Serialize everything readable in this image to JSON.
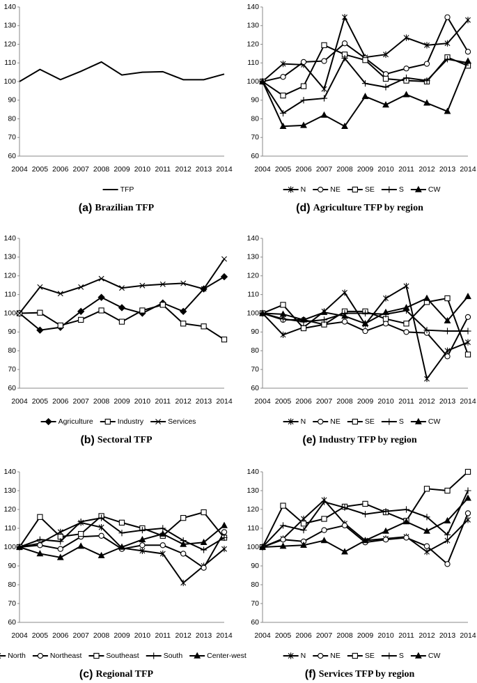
{
  "chart_data": [
    {
      "type": "line",
      "caption_label": "(a)",
      "caption": "Brazilian TFP",
      "categories": [
        "2004",
        "2005",
        "2006",
        "2007",
        "2008",
        "2009",
        "2010",
        "2011",
        "2012",
        "2013",
        "2014"
      ],
      "ylim": [
        60,
        140
      ],
      "yticks": [
        60,
        70,
        80,
        90,
        100,
        110,
        120,
        130,
        140
      ],
      "series": [
        {
          "name": "TFP",
          "color": "#000000",
          "marker": "none",
          "values": [
            100,
            106.5,
            101,
            105.5,
            110.5,
            103.5,
            105,
            105.3,
            101,
            101,
            104
          ]
        }
      ]
    },
    {
      "type": "line",
      "caption_label": "(b)",
      "caption": "Sectoral TFP",
      "categories": [
        "2004",
        "2005",
        "2006",
        "2007",
        "2008",
        "2009",
        "2010",
        "2011",
        "2012",
        "2013",
        "2014"
      ],
      "ylim": [
        60,
        140
      ],
      "yticks": [
        60,
        70,
        80,
        90,
        100,
        110,
        120,
        130,
        140
      ],
      "series": [
        {
          "name": "Agriculture",
          "color": "#000000",
          "marker": "diamond",
          "values": [
            100,
            91,
            92.5,
            101,
            108.5,
            103,
            100,
            105.5,
            101,
            113,
            119.5
          ]
        },
        {
          "name": "Industry",
          "color": "#000000",
          "marker": "square",
          "values": [
            100,
            100.3,
            93.5,
            96.5,
            101.5,
            95.5,
            101.5,
            104.5,
            94.5,
            93,
            86
          ]
        },
        {
          "name": "Services",
          "color": "#000000",
          "marker": "cross",
          "values": [
            100,
            114,
            110.5,
            114,
            118.5,
            113.5,
            114.8,
            115.5,
            116,
            113,
            129
          ]
        }
      ]
    },
    {
      "type": "line",
      "caption_label": "(c)",
      "caption": "Regional TFP",
      "categories": [
        "2004",
        "2005",
        "2006",
        "2007",
        "2008",
        "2009",
        "2010",
        "2011",
        "2012",
        "2013",
        "2014"
      ],
      "ylim": [
        60,
        140
      ],
      "yticks": [
        60,
        70,
        80,
        90,
        100,
        110,
        120,
        130,
        140
      ],
      "series": [
        {
          "name": "North",
          "color": "#000000",
          "marker": "asterisk",
          "values": [
            100,
            102,
            108,
            113,
            110.5,
            99.5,
            98,
            96.5,
            81,
            90,
            99
          ]
        },
        {
          "name": "Northeast",
          "color": "#000000",
          "marker": "circle",
          "values": [
            100,
            101,
            99,
            105.5,
            106,
            99,
            101,
            101,
            96.5,
            89,
            108
          ]
        },
        {
          "name": "Southeast",
          "color": "#000000",
          "marker": "square",
          "values": [
            100,
            116,
            105.5,
            107,
            116.5,
            113,
            110,
            106,
            115.5,
            118.5,
            105
          ]
        },
        {
          "name": "South",
          "color": "#000000",
          "marker": "plus",
          "values": [
            100,
            104,
            103,
            113.5,
            115.5,
            107.5,
            109,
            110,
            103.5,
            98.5,
            105
          ]
        },
        {
          "name": "Center-west",
          "color": "#000000",
          "marker": "triangle",
          "values": [
            100,
            96.5,
            94.5,
            100.5,
            95.5,
            100,
            104,
            107,
            101.5,
            102.5,
            111.5
          ]
        }
      ]
    },
    {
      "type": "line",
      "caption_label": "(d)",
      "caption": "Agriculture TFP by region",
      "categories": [
        "2004",
        "2005",
        "2006",
        "2007",
        "2008",
        "2009",
        "2010",
        "2011",
        "2012",
        "2013",
        "2014"
      ],
      "ylim": [
        60,
        140
      ],
      "yticks": [
        60,
        70,
        80,
        90,
        100,
        110,
        120,
        130,
        140
      ],
      "series": [
        {
          "name": "N",
          "color": "#000000",
          "marker": "asterisk",
          "values": [
            100,
            109.5,
            109,
            96,
            134.5,
            113,
            114.5,
            123.5,
            119.5,
            120.5,
            133
          ]
        },
        {
          "name": "NE",
          "color": "#000000",
          "marker": "circle",
          "values": [
            100,
            102.5,
            110.5,
            111,
            120.5,
            112.5,
            104,
            107,
            109.5,
            134.5,
            116
          ]
        },
        {
          "name": "SE",
          "color": "#000000",
          "marker": "square",
          "values": [
            100,
            92.5,
            97.5,
            119.5,
            114.5,
            111.5,
            101.5,
            100.5,
            100,
            113,
            108.5
          ]
        },
        {
          "name": "S",
          "color": "#000000",
          "marker": "plus",
          "values": [
            100,
            83,
            90,
            91,
            112.5,
            99,
            97,
            102,
            100.5,
            112,
            110
          ]
        },
        {
          "name": "CW",
          "color": "#000000",
          "marker": "triangle",
          "values": [
            100,
            76,
            76.5,
            82,
            76,
            92,
            87.5,
            93,
            88.5,
            84,
            111
          ]
        }
      ]
    },
    {
      "type": "line",
      "caption_label": "(e)",
      "caption": "Industry TFP by region",
      "categories": [
        "2004",
        "2005",
        "2006",
        "2007",
        "2008",
        "2009",
        "2010",
        "2011",
        "2012",
        "2013",
        "2014"
      ],
      "ylim": [
        60,
        140
      ],
      "yticks": [
        60,
        70,
        80,
        90,
        100,
        110,
        120,
        130,
        140
      ],
      "series": [
        {
          "name": "N",
          "color": "#000000",
          "marker": "asterisk",
          "values": [
            100,
            88.5,
            92.5,
            101,
            111,
            94,
            108,
            114.5,
            65,
            80,
            84.5
          ]
        },
        {
          "name": "NE",
          "color": "#000000",
          "marker": "circle",
          "values": [
            100,
            96.5,
            96.5,
            94,
            95.5,
            90.5,
            94.5,
            90,
            89.5,
            77,
            98
          ]
        },
        {
          "name": "SE",
          "color": "#000000",
          "marker": "square",
          "values": [
            100,
            104.5,
            92,
            94,
            101,
            101,
            97,
            94.5,
            106,
            108,
            78
          ]
        },
        {
          "name": "S",
          "color": "#000000",
          "marker": "plus",
          "values": [
            100,
            97,
            95.5,
            96.5,
            100,
            100,
            99.5,
            101.5,
            91,
            90.5,
            90.5
          ]
        },
        {
          "name": "CW",
          "color": "#000000",
          "marker": "triangle",
          "values": [
            100,
            99.5,
            96.5,
            100.5,
            98.5,
            94.5,
            100.5,
            103,
            108,
            96,
            109
          ]
        }
      ]
    },
    {
      "type": "line",
      "caption_label": "(f)",
      "caption": "Services TFP by region",
      "categories": [
        "2004",
        "2005",
        "2006",
        "2007",
        "2008",
        "2009",
        "2010",
        "2011",
        "2012",
        "2013",
        "2014"
      ],
      "ylim": [
        60,
        140
      ],
      "yticks": [
        60,
        70,
        80,
        90,
        100,
        110,
        120,
        130,
        140
      ],
      "series": [
        {
          "name": "N",
          "color": "#000000",
          "marker": "asterisk",
          "values": [
            100,
            104.5,
            115,
            125,
            112.5,
            103.5,
            104.5,
            105.5,
            97.5,
            103.5,
            114.5
          ]
        },
        {
          "name": "NE",
          "color": "#000000",
          "marker": "circle",
          "values": [
            100,
            104,
            103,
            109,
            111.5,
            102.5,
            104,
            105,
            100.5,
            91,
            118
          ]
        },
        {
          "name": "SE",
          "color": "#000000",
          "marker": "square",
          "values": [
            100,
            122,
            112.5,
            115,
            121.5,
            123,
            118.5,
            114,
            131,
            130,
            140
          ]
        },
        {
          "name": "S",
          "color": "#000000",
          "marker": "plus",
          "values": [
            100,
            111.5,
            109,
            124,
            121,
            117.5,
            119,
            120,
            116,
            106.5,
            130
          ]
        },
        {
          "name": "CW",
          "color": "#000000",
          "marker": "triangle",
          "values": [
            100,
            100.5,
            101,
            103.5,
            97.5,
            103.5,
            108.5,
            113.5,
            108.5,
            114,
            126
          ]
        }
      ]
    }
  ]
}
